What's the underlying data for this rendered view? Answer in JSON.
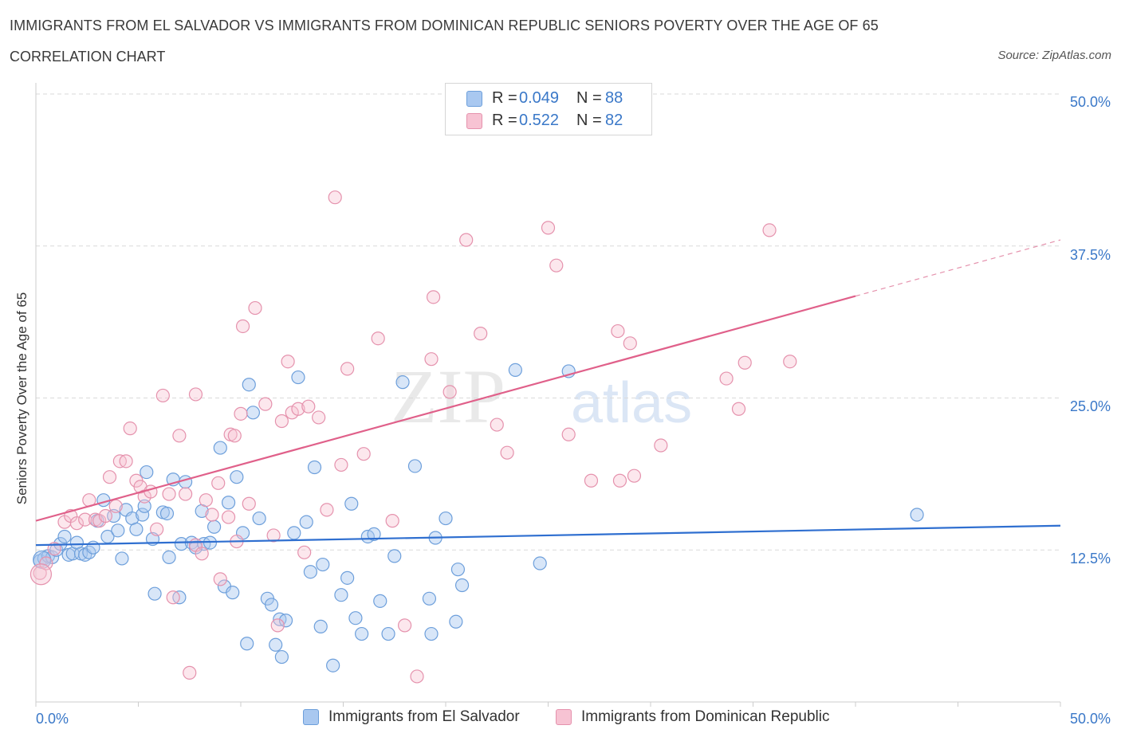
{
  "title": "IMMIGRANTS FROM EL SALVADOR VS IMMIGRANTS FROM DOMINICAN REPUBLIC SENIORS POVERTY OVER THE AGE OF 65",
  "subtitle": "CORRELATION CHART",
  "source": "Source: ZipAtlas.com",
  "watermark": {
    "zip": "ZIP",
    "atlas": "atlas"
  },
  "legend": {
    "rows": [
      {
        "r_label": "R =",
        "r_value": "0.049",
        "n_label": "N =",
        "n_value": "88",
        "color": "#a9c8f0",
        "border": "#6d9fdb"
      },
      {
        "r_label": "R =",
        "r_value": "0.522",
        "n_label": "N =",
        "n_value": "82",
        "color": "#f7c3d3",
        "border": "#e592ad"
      }
    ]
  },
  "bottom_legend": {
    "series_1": "Immigrants from El Salvador",
    "series_2": "Immigrants from Dominican Republic"
  },
  "chart_data": {
    "type": "scatter",
    "title": "IMMIGRANTS FROM EL SALVADOR VS IMMIGRANTS FROM DOMINICAN REPUBLIC SENIORS POVERTY OVER THE AGE OF 65",
    "xlabel": "",
    "ylabel": "Seniors Poverty Over the Age of 65",
    "xlim": [
      0,
      50
    ],
    "ylim": [
      0,
      50
    ],
    "x_tick_labels": [
      "0.0%",
      "50.0%"
    ],
    "y_tick_labels": [
      "12.5%",
      "25.0%",
      "37.5%",
      "50.0%"
    ],
    "y_ticks": [
      12.5,
      25.0,
      37.5,
      50.0
    ],
    "grid": true,
    "series": [
      {
        "name": "Immigrants from El Salvador",
        "color": "#6d9fdb",
        "fill": "rgba(169,200,240,0.45)",
        "trend": {
          "x": [
            0,
            50
          ],
          "y": [
            12.9,
            14.5
          ],
          "dashed_from": null
        },
        "points": [
          [
            0.2,
            11.6
          ],
          [
            0.4,
            11.8
          ],
          [
            0.6,
            12.0
          ],
          [
            0.8,
            11.9
          ],
          [
            1.0,
            12.5
          ],
          [
            1.2,
            13.0
          ],
          [
            1.4,
            13.6
          ],
          [
            1.6,
            12.1
          ],
          [
            1.8,
            12.2
          ],
          [
            2.0,
            13.1
          ],
          [
            2.2,
            12.2
          ],
          [
            2.4,
            12.1
          ],
          [
            2.6,
            12.3
          ],
          [
            2.8,
            12.7
          ],
          [
            3.0,
            14.9
          ],
          [
            3.3,
            16.6
          ],
          [
            3.5,
            13.6
          ],
          [
            3.8,
            15.3
          ],
          [
            4.0,
            14.1
          ],
          [
            4.2,
            11.8
          ],
          [
            4.4,
            15.8
          ],
          [
            4.7,
            15.1
          ],
          [
            4.9,
            14.2
          ],
          [
            5.2,
            15.4
          ],
          [
            5.3,
            16.1
          ],
          [
            5.4,
            18.9
          ],
          [
            5.7,
            13.4
          ],
          [
            5.8,
            8.9
          ],
          [
            6.2,
            15.6
          ],
          [
            6.4,
            15.5
          ],
          [
            6.5,
            11.9
          ],
          [
            6.7,
            18.3
          ],
          [
            7.0,
            8.6
          ],
          [
            7.1,
            13.0
          ],
          [
            7.3,
            18.1
          ],
          [
            7.6,
            13.1
          ],
          [
            7.8,
            12.7
          ],
          [
            8.1,
            15.7
          ],
          [
            8.2,
            13.0
          ],
          [
            8.5,
            13.1
          ],
          [
            8.7,
            14.4
          ],
          [
            9.0,
            20.9
          ],
          [
            9.2,
            9.5
          ],
          [
            9.4,
            16.4
          ],
          [
            9.6,
            9.0
          ],
          [
            9.8,
            18.5
          ],
          [
            10.1,
            13.9
          ],
          [
            10.3,
            4.8
          ],
          [
            10.4,
            26.1
          ],
          [
            10.6,
            23.8
          ],
          [
            10.9,
            15.1
          ],
          [
            11.3,
            8.5
          ],
          [
            11.5,
            8.0
          ],
          [
            11.7,
            4.7
          ],
          [
            11.9,
            6.8
          ],
          [
            12.0,
            3.7
          ],
          [
            12.2,
            6.7
          ],
          [
            12.6,
            13.9
          ],
          [
            12.8,
            26.7
          ],
          [
            13.2,
            14.8
          ],
          [
            13.4,
            10.7
          ],
          [
            13.6,
            19.3
          ],
          [
            13.9,
            6.2
          ],
          [
            14.0,
            11.3
          ],
          [
            14.5,
            3.0
          ],
          [
            14.9,
            8.8
          ],
          [
            15.2,
            10.2
          ],
          [
            15.4,
            16.3
          ],
          [
            15.6,
            6.9
          ],
          [
            15.9,
            5.6
          ],
          [
            16.2,
            13.6
          ],
          [
            16.5,
            13.8
          ],
          [
            16.8,
            8.3
          ],
          [
            17.2,
            5.6
          ],
          [
            17.5,
            12.0
          ],
          [
            17.9,
            26.3
          ],
          [
            18.5,
            19.4
          ],
          [
            19.2,
            8.5
          ],
          [
            19.3,
            5.6
          ],
          [
            19.5,
            13.5
          ],
          [
            20.0,
            15.1
          ],
          [
            20.5,
            6.6
          ],
          [
            20.6,
            10.9
          ],
          [
            20.8,
            9.6
          ],
          [
            23.4,
            27.3
          ],
          [
            24.6,
            11.4
          ],
          [
            26.0,
            27.2
          ],
          [
            43.0,
            15.4
          ]
        ]
      },
      {
        "name": "Immigrants from Dominican Republic",
        "color": "#e592ad",
        "fill": "rgba(247,195,211,0.40)",
        "trend": {
          "x": [
            0,
            50
          ],
          "y": [
            14.9,
            38.0
          ],
          "dashed_from": 40.0
        },
        "points": [
          [
            0.2,
            10.6
          ],
          [
            0.5,
            11.4
          ],
          [
            0.9,
            12.6
          ],
          [
            1.4,
            14.8
          ],
          [
            1.7,
            15.3
          ],
          [
            2.0,
            14.7
          ],
          [
            2.4,
            15.0
          ],
          [
            2.6,
            16.6
          ],
          [
            2.9,
            15.0
          ],
          [
            3.1,
            14.9
          ],
          [
            3.4,
            15.3
          ],
          [
            3.6,
            18.5
          ],
          [
            3.9,
            16.1
          ],
          [
            4.1,
            19.8
          ],
          [
            4.4,
            19.8
          ],
          [
            4.6,
            22.5
          ],
          [
            4.9,
            18.2
          ],
          [
            5.1,
            17.7
          ],
          [
            5.3,
            16.9
          ],
          [
            5.6,
            17.3
          ],
          [
            5.9,
            14.2
          ],
          [
            6.2,
            25.2
          ],
          [
            6.5,
            17.1
          ],
          [
            6.7,
            8.6
          ],
          [
            7.0,
            21.9
          ],
          [
            7.3,
            17.1
          ],
          [
            7.5,
            2.4
          ],
          [
            7.8,
            12.9
          ],
          [
            7.8,
            25.3
          ],
          [
            8.1,
            12.2
          ],
          [
            8.3,
            16.6
          ],
          [
            8.6,
            15.4
          ],
          [
            8.9,
            18.0
          ],
          [
            9.0,
            10.1
          ],
          [
            9.4,
            15.2
          ],
          [
            9.5,
            22.0
          ],
          [
            9.7,
            21.9
          ],
          [
            9.8,
            13.2
          ],
          [
            10.0,
            23.7
          ],
          [
            10.1,
            30.9
          ],
          [
            10.4,
            16.3
          ],
          [
            10.7,
            32.4
          ],
          [
            11.2,
            24.5
          ],
          [
            11.6,
            13.7
          ],
          [
            11.8,
            6.3
          ],
          [
            12.0,
            23.1
          ],
          [
            12.3,
            28.0
          ],
          [
            12.5,
            23.8
          ],
          [
            12.8,
            24.1
          ],
          [
            13.1,
            12.3
          ],
          [
            13.3,
            24.3
          ],
          [
            13.8,
            23.4
          ],
          [
            14.2,
            15.8
          ],
          [
            14.6,
            41.5
          ],
          [
            14.9,
            19.5
          ],
          [
            15.2,
            27.4
          ],
          [
            16.0,
            20.4
          ],
          [
            16.7,
            29.9
          ],
          [
            17.4,
            14.9
          ],
          [
            18.0,
            6.3
          ],
          [
            18.6,
            2.1
          ],
          [
            19.3,
            28.2
          ],
          [
            19.4,
            33.3
          ],
          [
            20.2,
            25.5
          ],
          [
            21.0,
            38.0
          ],
          [
            21.7,
            30.3
          ],
          [
            22.5,
            22.8
          ],
          [
            23.0,
            20.5
          ],
          [
            25.0,
            39.0
          ],
          [
            25.4,
            35.9
          ],
          [
            26.0,
            22.0
          ],
          [
            27.1,
            18.2
          ],
          [
            28.4,
            30.5
          ],
          [
            28.5,
            18.2
          ],
          [
            29.0,
            29.5
          ],
          [
            29.2,
            18.6
          ],
          [
            30.5,
            21.1
          ],
          [
            33.7,
            26.6
          ],
          [
            34.3,
            24.1
          ],
          [
            34.6,
            27.9
          ],
          [
            35.8,
            38.8
          ],
          [
            36.8,
            28.0
          ]
        ]
      }
    ]
  }
}
